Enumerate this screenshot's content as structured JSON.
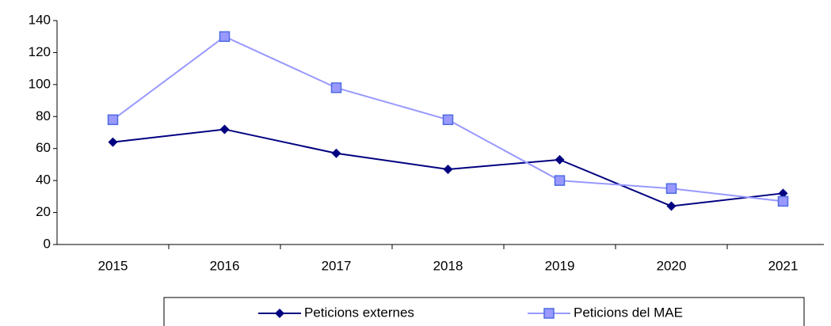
{
  "chart_data": {
    "type": "line",
    "categories": [
      "2015",
      "2016",
      "2017",
      "2018",
      "2019",
      "2020",
      "2021"
    ],
    "series": [
      {
        "name": "Peticions externes",
        "color": "#000080",
        "marker": "diamond",
        "values": [
          64,
          72,
          57,
          47,
          53,
          24,
          32
        ]
      },
      {
        "name": "Peticions del MAE",
        "color": "#9999ff",
        "marker": "square",
        "values": [
          78,
          130,
          98,
          78,
          40,
          35,
          27
        ]
      }
    ],
    "ylim": [
      0,
      140
    ],
    "yticks": [
      0,
      20,
      40,
      60,
      80,
      100,
      120,
      140
    ],
    "grid": false,
    "legend": "bottom"
  }
}
